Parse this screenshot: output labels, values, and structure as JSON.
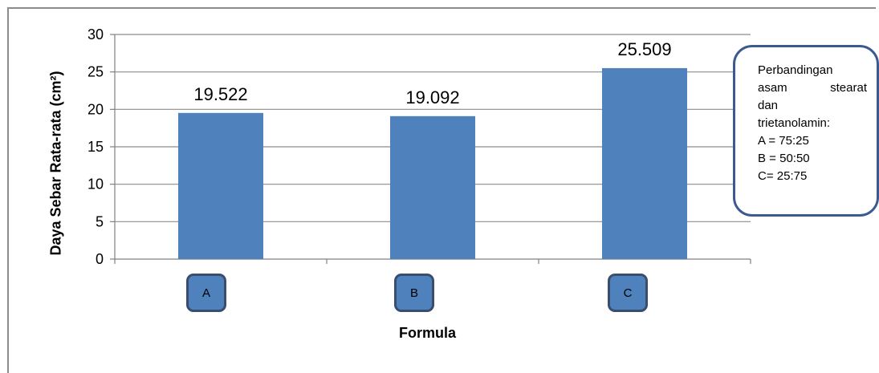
{
  "chart_data": {
    "type": "bar",
    "categories": [
      "A",
      "B",
      "C"
    ],
    "values": [
      19.522,
      19.092,
      25.509
    ],
    "data_labels": [
      "19.522",
      "19.092",
      "25.509"
    ],
    "ylabel": "Daya Sebar Rata-rata (cm²)",
    "xlabel": "Formula",
    "ylim": [
      0,
      30
    ],
    "yticks": [
      0,
      5,
      10,
      15,
      20,
      25,
      30
    ],
    "grid": true,
    "bar_color": "#4f81bd",
    "note": {
      "heading_1": "Perbandingan",
      "heading_2a": "asam",
      "heading_2b": "stearat",
      "heading_3": "dan",
      "heading_4": "trietanolamin:",
      "lines": [
        "A = 75:25",
        "B = 50:50",
        "C= 25:75"
      ]
    }
  }
}
